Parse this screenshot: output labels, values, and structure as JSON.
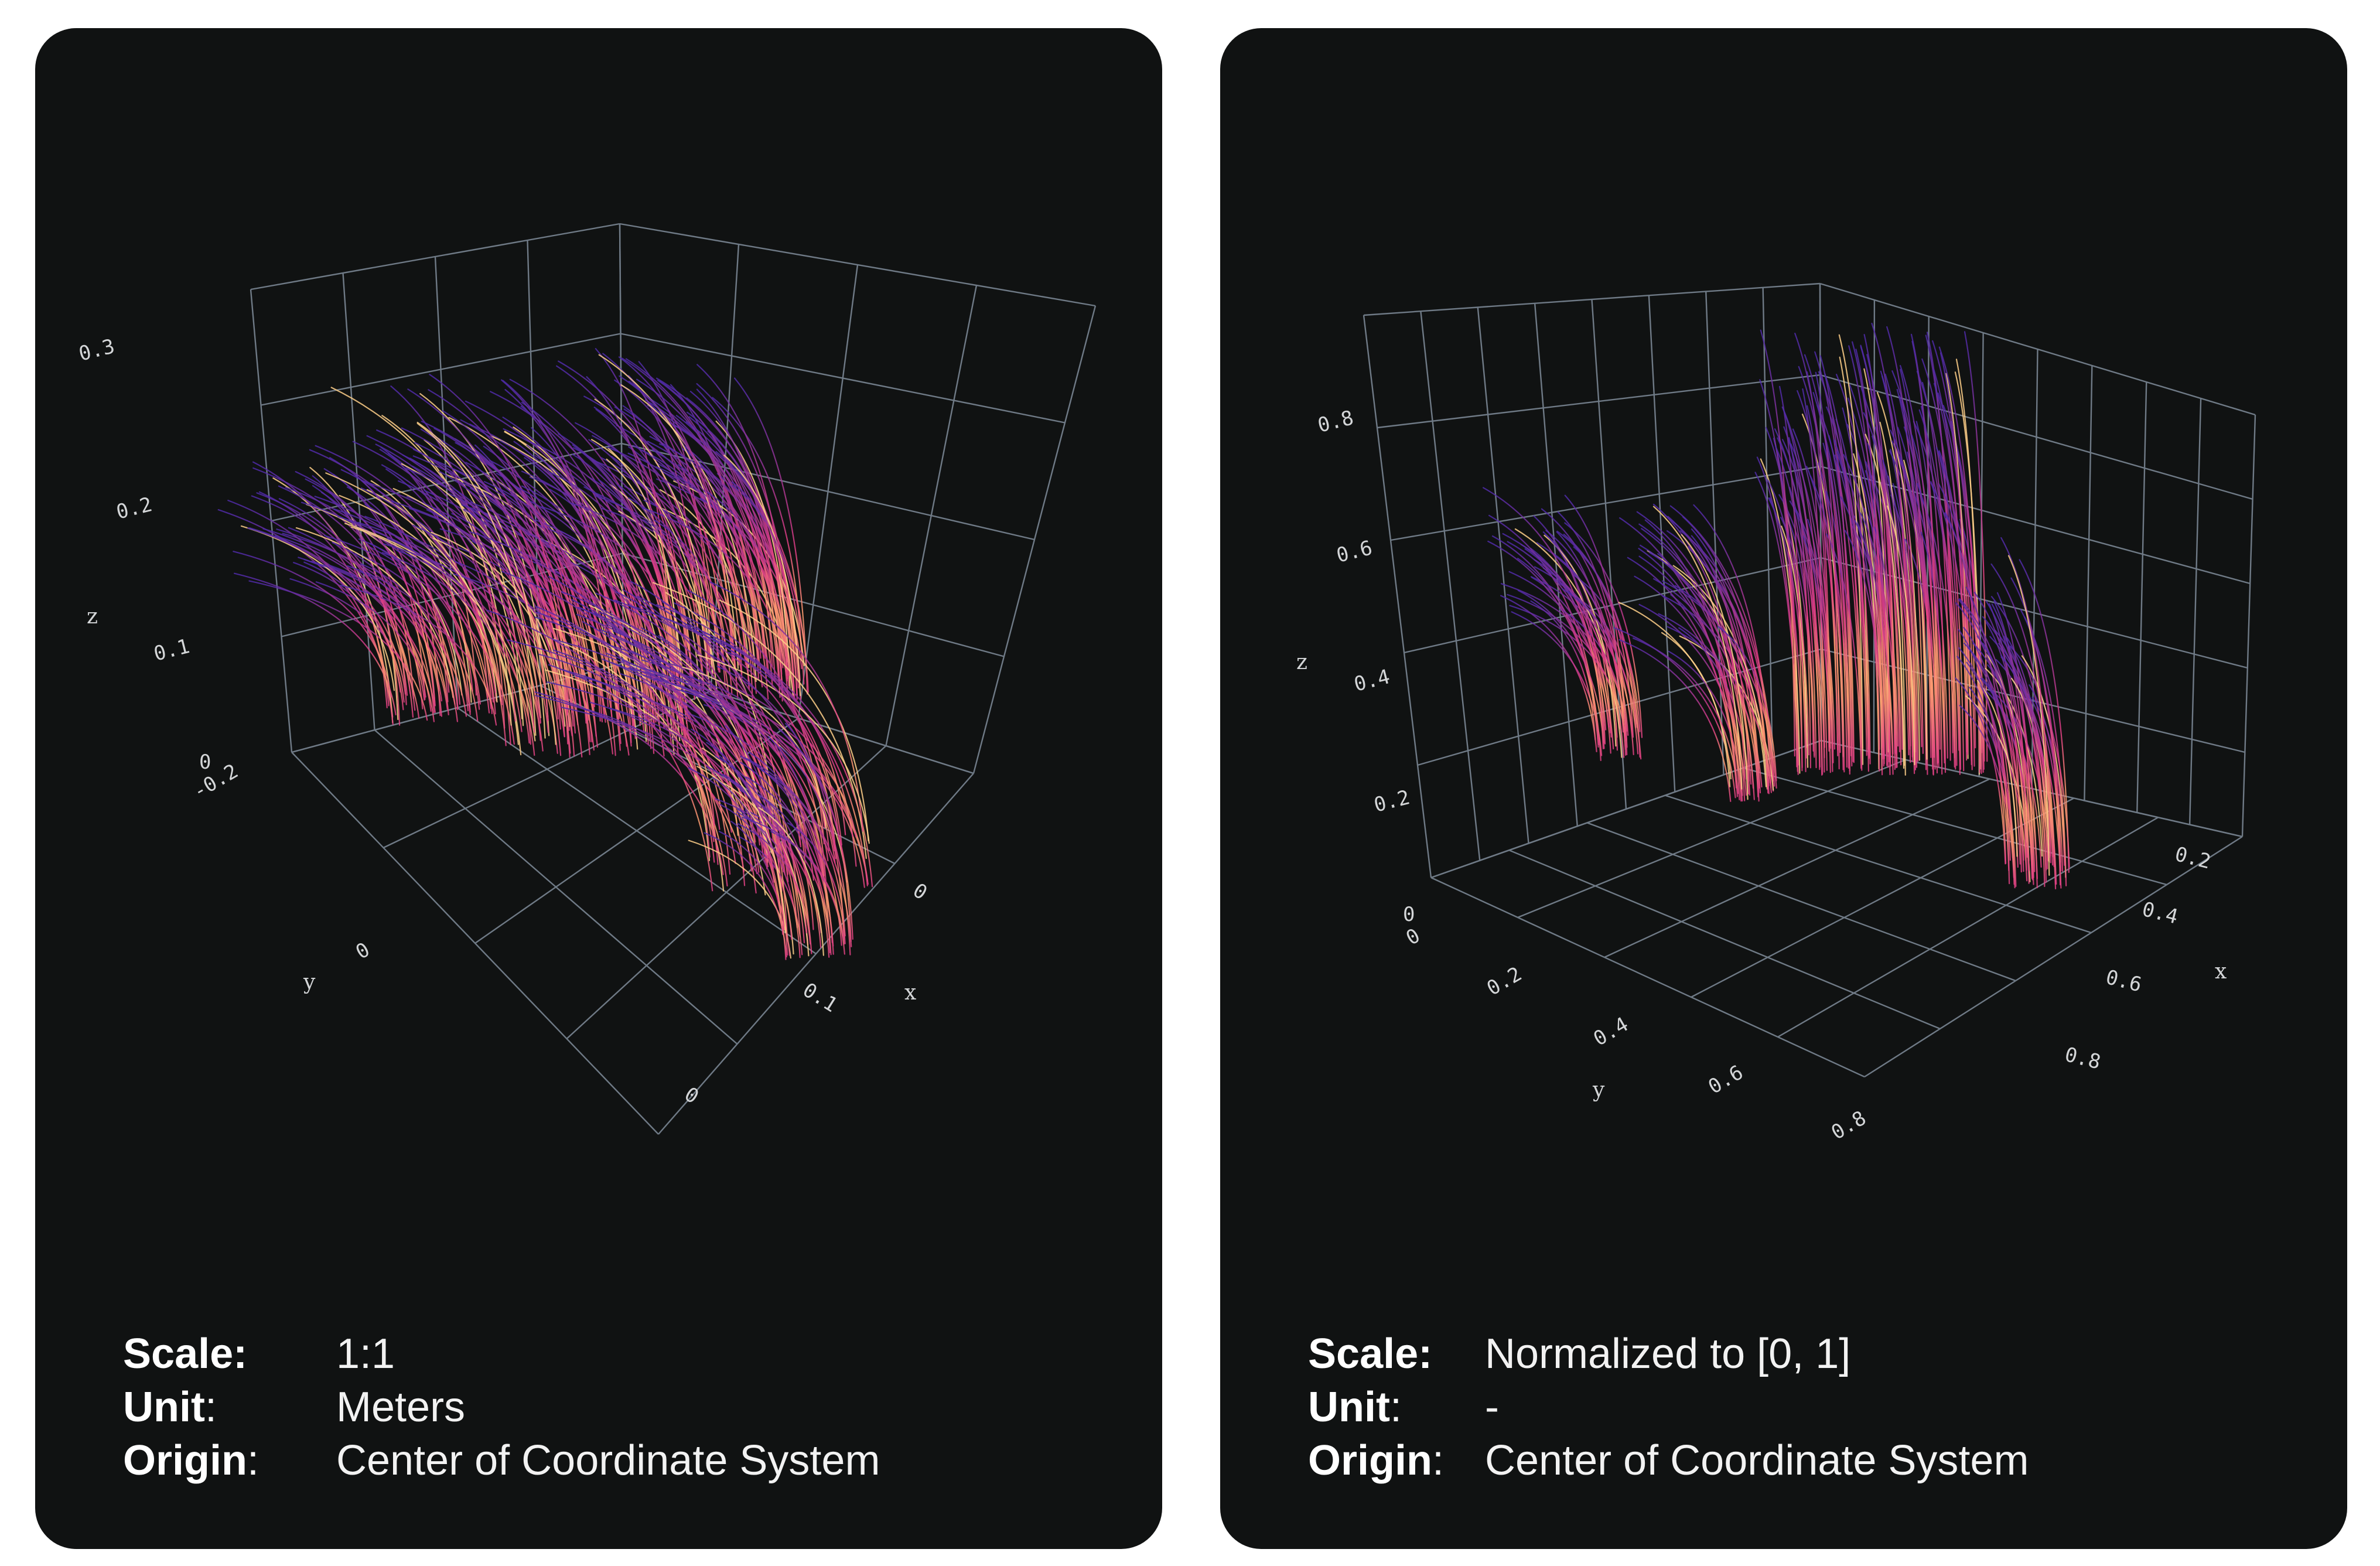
{
  "panels": [
    {
      "chart_data": {
        "type": "line",
        "subtype": "3d-strand-trajectories",
        "colormap": "magma",
        "colors": {
          "low": "#e03e84",
          "mid": "#ff9f6f",
          "high": "#ffd08a",
          "top": "#4d2aa8"
        },
        "axes": {
          "x": {
            "label": "x",
            "ticks": [
              "0",
              "0.1",
              "0"
            ]
          },
          "y": {
            "label": "y",
            "ticks": [
              "-0.2",
              "0"
            ]
          },
          "z": {
            "label": "z",
            "ticks": [
              "0",
              "0.1",
              "0.2",
              "0.3"
            ]
          }
        },
        "grid": true
      },
      "info": {
        "scale_key": "Scale:",
        "scale_value": "1:1",
        "unit_key": "Unit",
        "unit_colon": ":",
        "unit_value": "Meters",
        "origin_key": "Origin",
        "origin_colon": ":",
        "origin_value": "Center of Coordinate System"
      }
    },
    {
      "chart_data": {
        "type": "line",
        "subtype": "3d-strand-trajectories",
        "colormap": "magma",
        "colors": {
          "low": "#e03e84",
          "mid": "#ff9f6f",
          "high": "#ffd08a",
          "top": "#4d2aa8"
        },
        "axes": {
          "x": {
            "label": "x",
            "ticks": [
              "0.2",
              "0.4",
              "0.6",
              "0.8"
            ]
          },
          "y": {
            "label": "y",
            "ticks": [
              "0",
              "0.2",
              "0.4",
              "0.6",
              "0.8"
            ]
          },
          "z": {
            "label": "z",
            "ticks": [
              "0",
              "0.2",
              "0.4",
              "0.6",
              "0.8"
            ]
          }
        },
        "grid": true
      },
      "info": {
        "scale_key": "Scale:",
        "scale_value": "Normalized to [0, 1]",
        "unit_key": "Unit",
        "unit_colon": ":",
        "unit_value": "-",
        "origin_key": "Origin",
        "origin_colon": ":",
        "origin_value": "Center of Coordinate System"
      }
    }
  ]
}
